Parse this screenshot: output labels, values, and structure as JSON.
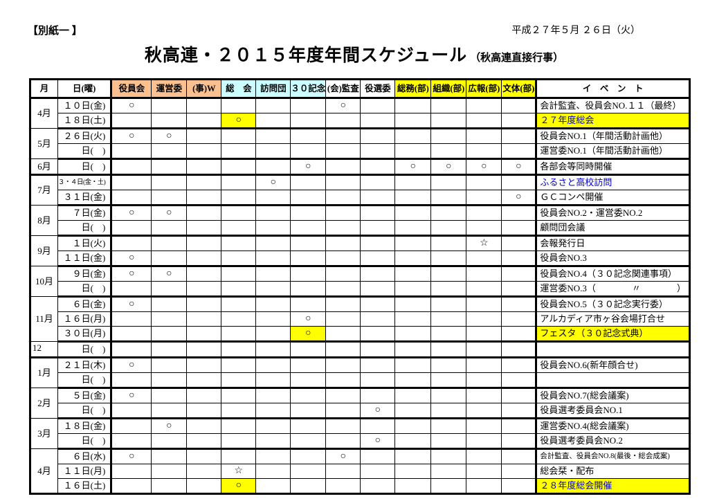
{
  "page": {
    "tag": "【別紙一 】",
    "date": "平成２７年５月 ２６日（火）",
    "title": "秋高連・２０１５年度年間スケジュール",
    "subtitle": "（秋高連直接行事）"
  },
  "colors": {
    "highlight": "#FFFF00",
    "header_orange": "#FAC090",
    "header_cyan": "#CCFFFF",
    "header_yellow": "#FFFF00",
    "blue_text": "#0000D0"
  },
  "table": {
    "headers": {
      "month": "月",
      "day": "日(曜)",
      "marks": [
        {
          "label": "役員会",
          "bg": "#FAC090"
        },
        {
          "label": "運営委",
          "bg": "#FAC090"
        },
        {
          "label": "(事)W",
          "bg": "#FAC090"
        },
        {
          "label": "総　会",
          "bg": "#CCFFFF"
        },
        {
          "label": "訪問団",
          "bg": "#CCFFFF"
        },
        {
          "label": "３０記念",
          "bg": "#CCFFFF"
        },
        {
          "label": "(会)監査",
          "bg": "#FFFFFF"
        },
        {
          "label": "役選委",
          "bg": "#FFFFFF"
        },
        {
          "label": "総務(部)",
          "bg": "#FFFF00"
        },
        {
          "label": "組織(部)",
          "bg": "#FFFF00"
        },
        {
          "label": "広報(部)",
          "bg": "#FFFF00"
        },
        {
          "label": "文体(部)",
          "bg": "#FFFF00"
        }
      ],
      "event": "イ　ベ　ン　ト"
    },
    "groups": [
      {
        "month": "4月",
        "rows": [
          {
            "day": "１０日(金)",
            "marks": [
              "○",
              "",
              "",
              "",
              "",
              "",
              "○",
              "",
              "",
              "",
              "",
              ""
            ],
            "event": "会計監査、役員会NO.１１（最終）"
          },
          {
            "day": "１８日(土)",
            "marks": [
              "",
              "",
              "",
              "○",
              "",
              "",
              "",
              "",
              "",
              "",
              "",
              ""
            ],
            "hl": [
              3
            ],
            "event": "２７年度総会",
            "eventHl": true,
            "eventBlue": true
          }
        ]
      },
      {
        "month": "5月",
        "rows": [
          {
            "day": "２６日(火)",
            "marks": [
              "○",
              "○",
              "",
              "",
              "",
              "",
              "",
              "",
              "",
              "",
              "",
              ""
            ],
            "event": "役員会NO.1（年間活動計画他）",
            "dashed": true
          },
          {
            "day": "日(　)",
            "marks": [
              "",
              "",
              "",
              "",
              "",
              "",
              "",
              "",
              "",
              "",
              "",
              ""
            ],
            "event": "運営委NO.1（年間活動計画他）"
          }
        ]
      },
      {
        "month": "6月",
        "rows": [
          {
            "day": "日(　)",
            "marks": [
              "",
              "",
              "",
              "",
              "",
              "○",
              "",
              "",
              "○",
              "○",
              "○",
              "○"
            ],
            "event": "各部会等同時開催"
          }
        ]
      },
      {
        "month": "7月",
        "rows": [
          {
            "day": "３・４日(金・土)",
            "daySmall": true,
            "marks": [
              "",
              "",
              "",
              "",
              "○",
              "",
              "",
              "",
              "",
              "",
              "",
              ""
            ],
            "event": "ふるさと高校訪問",
            "eventBlue": true
          },
          {
            "day": "３１日(金)",
            "marks": [
              "",
              "",
              "",
              "",
              "",
              "",
              "",
              "",
              "",
              "",
              "",
              "○"
            ],
            "event": "ＧＣコンペ開催"
          }
        ]
      },
      {
        "month": "8月",
        "rows": [
          {
            "day": "７日(金)",
            "marks": [
              "○",
              "○",
              "",
              "",
              "",
              "",
              "",
              "",
              "",
              "",
              "",
              ""
            ],
            "event": "役員会NO.2・運営委NO.2"
          },
          {
            "day": "日(　)",
            "marks": [
              "",
              "",
              "",
              "",
              "",
              "",
              "",
              "",
              "",
              "",
              "",
              ""
            ],
            "event": "顧問団会議"
          }
        ]
      },
      {
        "month": "9月",
        "rows": [
          {
            "day": "１日(火)",
            "marks": [
              "",
              "",
              "",
              "",
              "",
              "",
              "",
              "",
              "",
              "",
              "☆",
              ""
            ],
            "event": "会報発行日"
          },
          {
            "day": "１１日(金)",
            "marks": [
              "○",
              "",
              "",
              "",
              "",
              "",
              "",
              "",
              "",
              "",
              "",
              ""
            ],
            "event": "役員会NO.3"
          }
        ]
      },
      {
        "month": "10月",
        "rows": [
          {
            "day": "９日(金)",
            "marks": [
              "○",
              "○",
              "",
              "",
              "",
              "",
              "",
              "",
              "",
              "",
              "",
              ""
            ],
            "event": "役員会NO.4（３０記念関連事項）"
          },
          {
            "day": "日(　)",
            "marks": [
              "",
              "",
              "",
              "",
              "",
              "",
              "",
              "",
              "",
              "",
              "",
              ""
            ],
            "event": "運営委NO.3（　　　　〃　　　　）"
          }
        ]
      },
      {
        "month": "11月",
        "rows": [
          {
            "day": "６日(金)",
            "marks": [
              "○",
              "",
              "",
              "",
              "",
              "",
              "",
              "",
              "",
              "",
              "",
              ""
            ],
            "event": "役員会NO.5（３０記念実行委）"
          },
          {
            "day": "１６日(月)",
            "marks": [
              "",
              "",
              "",
              "",
              "",
              "○",
              "",
              "",
              "",
              "",
              "",
              ""
            ],
            "event": "アルカディア市ヶ谷会場打合せ"
          },
          {
            "day": "３０日(月)",
            "marks": [
              "",
              "",
              "",
              "",
              "",
              "○",
              "",
              "",
              "",
              "",
              "",
              ""
            ],
            "hl": [
              5
            ],
            "event": "フェスタ（３０記念式典）",
            "eventHl": true
          }
        ]
      },
      {
        "month": "12",
        "align": "tl",
        "rows": [
          {
            "day": "日(　)",
            "marks": [
              "",
              "",
              "",
              "",
              "",
              "",
              "",
              "",
              "",
              "",
              "",
              ""
            ],
            "event": ""
          }
        ]
      },
      {
        "month": "1月",
        "rows": [
          {
            "day": "２１日(木)",
            "marks": [
              "○",
              "",
              "",
              "",
              "",
              "",
              "",
              "",
              "",
              "",
              "",
              ""
            ],
            "event": "役員会NO.6(新年顔合せ)"
          },
          {
            "day": "日(　)",
            "marks": [
              "",
              "",
              "",
              "",
              "",
              "",
              "",
              "",
              "",
              "",
              "",
              ""
            ],
            "event": ""
          }
        ]
      },
      {
        "month": "2月",
        "rows": [
          {
            "day": "５日(金)",
            "marks": [
              "○",
              "",
              "",
              "",
              "",
              "",
              "",
              "",
              "",
              "",
              "",
              ""
            ],
            "event": "役員会NO.7(総会議案)"
          },
          {
            "day": "日(　)",
            "marks": [
              "",
              "",
              "",
              "",
              "",
              "",
              "",
              "○",
              "",
              "",
              "",
              ""
            ],
            "event": "役員選考委員会NO.1"
          }
        ]
      },
      {
        "month": "3月",
        "rows": [
          {
            "day": "１８日(金)",
            "marks": [
              "",
              "○",
              "",
              "",
              "",
              "",
              "",
              "",
              "",
              "",
              "",
              ""
            ],
            "event": "運営委NO.4(総会議案)"
          },
          {
            "day": "日(　)",
            "marks": [
              "",
              "",
              "",
              "",
              "",
              "",
              "",
              "○",
              "",
              "",
              "",
              ""
            ],
            "event": "役員選考委員会NO.2"
          }
        ]
      },
      {
        "month": "4月",
        "rows": [
          {
            "day": "６日(水)",
            "marks": [
              "○",
              "",
              "",
              "",
              "",
              "",
              "○",
              "",
              "",
              "",
              "",
              ""
            ],
            "event": "会計監査、役員会NO.8(最後・総会成案)",
            "eventSmall": true
          },
          {
            "day": "１１日(月)",
            "marks": [
              "",
              "",
              "",
              "☆",
              "",
              "",
              "",
              "",
              "",
              "",
              "",
              ""
            ],
            "event": "総会栞・配布"
          },
          {
            "day": "１６日(土)",
            "marks": [
              "",
              "",
              "",
              "○",
              "",
              "",
              "",
              "",
              "",
              "",
              "",
              ""
            ],
            "hl": [
              3
            ],
            "event": "２８年度総会開催",
            "eventHl": true,
            "eventBlue": true
          }
        ]
      }
    ]
  }
}
